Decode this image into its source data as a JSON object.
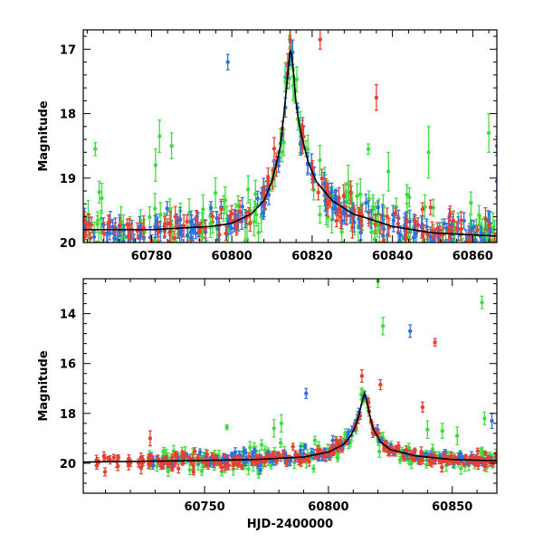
{
  "chart_data": [
    {
      "type": "scatter",
      "panel": "top",
      "ylabel": "Magnitude",
      "xlabel": "",
      "xlim": [
        60763,
        60866
      ],
      "ylim": [
        20.0,
        16.7
      ],
      "y_inverted": true,
      "x_ticks": [
        60780,
        60800,
        60820,
        60840,
        60860
      ],
      "y_ticks": [
        17,
        18,
        19,
        20
      ],
      "series_colors": [
        "#2f6fe0",
        "#e84030",
        "#3fdc3f"
      ],
      "model_curve": {
        "color": "#000000",
        "x": [
          60763,
          60780,
          60795,
          60800,
          60805,
          60808,
          60810,
          60812,
          60813,
          60814,
          60814.6,
          60815.3,
          60816,
          60817,
          60819,
          60821,
          60825,
          60830,
          60840,
          60850,
          60866
        ],
        "y": [
          19.8,
          19.8,
          19.75,
          19.7,
          19.55,
          19.35,
          19.05,
          18.55,
          18.0,
          17.35,
          16.95,
          17.3,
          17.85,
          18.25,
          18.75,
          19.05,
          19.35,
          19.55,
          19.75,
          19.85,
          19.9
        ]
      },
      "outliers": [
        {
          "x": 60799,
          "y": 17.2,
          "err": 0.12,
          "series": 0
        },
        {
          "x": 60766,
          "y": 18.55,
          "err": 0.1,
          "series": 2
        },
        {
          "x": 60782,
          "y": 18.35,
          "err": 0.25,
          "series": 2
        },
        {
          "x": 60785,
          "y": 18.5,
          "err": 0.2,
          "series": 2
        },
        {
          "x": 60781,
          "y": 18.8,
          "err": 0.25,
          "series": 2
        },
        {
          "x": 60814.5,
          "y": 16.85,
          "err": 0.15,
          "series": 1
        },
        {
          "x": 60822,
          "y": 16.85,
          "err": 0.15,
          "series": 1
        },
        {
          "x": 60836,
          "y": 17.75,
          "err": 0.2,
          "series": 1
        },
        {
          "x": 60834,
          "y": 18.55,
          "err": 0.08,
          "series": 2
        },
        {
          "x": 60849,
          "y": 18.6,
          "err": 0.4,
          "series": 2
        },
        {
          "x": 60864,
          "y": 18.3,
          "err": 0.3,
          "series": 2
        },
        {
          "x": 60866,
          "y": 18.5,
          "err": 0.15,
          "series": 0
        },
        {
          "x": 60866,
          "y": 19.05,
          "err": 0.25,
          "series": 0
        },
        {
          "x": 60839,
          "y": 18.9,
          "err": 0.3,
          "series": 2
        },
        {
          "x": 60829,
          "y": 19.1,
          "err": 0.3,
          "series": 2
        }
      ]
    },
    {
      "type": "scatter",
      "panel": "bottom",
      "ylabel": "Magnitude",
      "xlabel": "HJD-2400000",
      "xlim": [
        60701,
        60868
      ],
      "ylim": [
        21.2,
        12.6
      ],
      "y_inverted": true,
      "x_ticks": [
        60750,
        60800,
        60850
      ],
      "y_ticks": [
        14,
        16,
        18,
        20
      ],
      "series_colors": [
        "#2f6fe0",
        "#e84030",
        "#3fdc3f"
      ],
      "model_curve": {
        "color": "#000000",
        "x": [
          60701,
          60740,
          60770,
          60790,
          60800,
          60806,
          60809,
          60811,
          60812.5,
          60813.5,
          60814.6,
          60815.5,
          60816.5,
          60818,
          60821,
          60825,
          60835,
          60850,
          60868
        ],
        "y": [
          19.95,
          19.9,
          19.85,
          19.75,
          19.55,
          19.25,
          18.9,
          18.5,
          18.0,
          17.55,
          17.2,
          17.5,
          18.0,
          18.6,
          19.15,
          19.45,
          19.7,
          19.85,
          19.9
        ]
      },
      "outliers": [
        {
          "x": 60820,
          "y": 12.7,
          "err": 0.25,
          "series": 2
        },
        {
          "x": 60822,
          "y": 14.5,
          "err": 0.35,
          "series": 2
        },
        {
          "x": 60833,
          "y": 14.7,
          "err": 0.25,
          "series": 0
        },
        {
          "x": 60843,
          "y": 15.15,
          "err": 0.15,
          "series": 1
        },
        {
          "x": 60862,
          "y": 13.55,
          "err": 0.25,
          "series": 2
        },
        {
          "x": 60791,
          "y": 17.2,
          "err": 0.2,
          "series": 0
        },
        {
          "x": 60821,
          "y": 16.85,
          "err": 0.2,
          "series": 1
        },
        {
          "x": 60813.5,
          "y": 16.5,
          "err": 0.25,
          "series": 1
        },
        {
          "x": 60838,
          "y": 17.75,
          "err": 0.2,
          "series": 1
        },
        {
          "x": 60863,
          "y": 18.2,
          "err": 0.25,
          "series": 2
        },
        {
          "x": 60866,
          "y": 18.3,
          "err": 0.3,
          "series": 0
        },
        {
          "x": 60728,
          "y": 19.0,
          "err": 0.3,
          "series": 1
        },
        {
          "x": 60759,
          "y": 18.55,
          "err": 0.1,
          "series": 2
        },
        {
          "x": 60778,
          "y": 18.6,
          "err": 0.35,
          "series": 2
        },
        {
          "x": 60781,
          "y": 18.4,
          "err": 0.35,
          "series": 2
        },
        {
          "x": 60840,
          "y": 18.65,
          "err": 0.35,
          "series": 2
        },
        {
          "x": 60846,
          "y": 18.7,
          "err": 0.3,
          "series": 2
        },
        {
          "x": 60852,
          "y": 18.9,
          "err": 0.35,
          "series": 2
        }
      ]
    }
  ]
}
